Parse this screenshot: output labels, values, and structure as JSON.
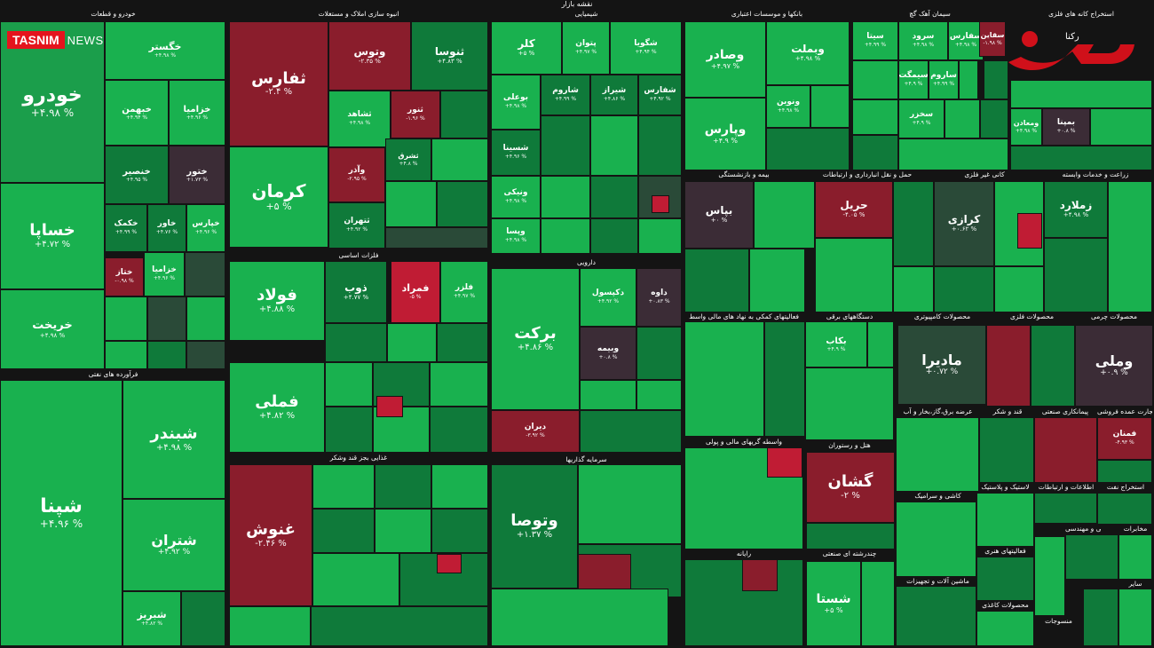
{
  "map_title": "نقشه بازار",
  "watermarks": {
    "agency": "TASNIM",
    "agency_suffix": "NEWS",
    "site": "رکنا"
  },
  "colors": {
    "green": "#1b9e4b",
    "bright_green": "#21c25a",
    "dark_green": "#0f7a3a",
    "red": "#c01c34",
    "dark_red": "#8a1d2c",
    "neutral": "#3b2c36"
  },
  "sectors": [
    {
      "id": "s1",
      "label": "خودرو و قطعات"
    },
    {
      "id": "s2",
      "label": "انبوه سازی املاک و مستغلات"
    },
    {
      "id": "s3",
      "label": "شیمیایی"
    },
    {
      "id": "s4",
      "label": "بانکها و موسسات اعتباری"
    },
    {
      "id": "s5",
      "label": "سیمان آهک گچ"
    },
    {
      "id": "s6",
      "label": "استخراج کانه های فلزی"
    },
    {
      "id": "s7",
      "label": "فرآورده های نفتی"
    },
    {
      "id": "s8",
      "label": "فلزات اساسی"
    },
    {
      "id": "s9",
      "label": "دارویی"
    },
    {
      "id": "s10",
      "label": "بیمه و بازنشستگی"
    },
    {
      "id": "s11",
      "label": "حمل و نقل انبارداری و ارتباطات"
    },
    {
      "id": "s12",
      "label": "کانی غیر فلزی"
    },
    {
      "id": "s13",
      "label": "زراعت و خدمات وابسته"
    },
    {
      "id": "s14",
      "label": "فعالیتهای کمکی به نهاد های مالی واسط"
    },
    {
      "id": "s15",
      "label": "دستگاههای برقی"
    },
    {
      "id": "s16",
      "label": "محصولات کامپیوتری"
    },
    {
      "id": "s17",
      "label": "محصولات فلزی"
    },
    {
      "id": "s18",
      "label": "محصولات چرمی"
    },
    {
      "id": "s19",
      "label": "عرضه برق،گاز،بخار و آب"
    },
    {
      "id": "s20",
      "label": "قند و شکر"
    },
    {
      "id": "s21",
      "label": "پیمانکاری صنعتی"
    },
    {
      "id": "s22",
      "label": "تجارت عمده فروشی"
    },
    {
      "id": "s23",
      "label": "غذایی بجز قند وشکر"
    },
    {
      "id": "s24",
      "label": "سرمایه گذاریها"
    },
    {
      "id": "s25",
      "label": "واسطه گریهای مالی و پولی"
    },
    {
      "id": "s26",
      "label": "هتل و رستوران"
    },
    {
      "id": "s27",
      "label": "کاشی و سرامیک"
    },
    {
      "id": "s28",
      "label": "لاستیک و پلاستیک"
    },
    {
      "id": "s29",
      "label": "اطلاعات و ارتباطات"
    },
    {
      "id": "s30",
      "label": "استخراج نفت"
    },
    {
      "id": "s31",
      "label": "رایانه"
    },
    {
      "id": "s32",
      "label": "چندرشته ای صنعتی"
    },
    {
      "id": "s33",
      "label": "ماشین آلات و تجهیزات"
    },
    {
      "id": "s34",
      "label": "فعالیتهای هنری"
    },
    {
      "id": "s35",
      "label": "محصولات کاغذی"
    },
    {
      "id": "s36",
      "label": "فنی و مهندسی"
    },
    {
      "id": "s37",
      "label": "مخابرات"
    },
    {
      "id": "s38",
      "label": "منسوجات"
    },
    {
      "id": "s39",
      "label": "سایر"
    }
  ],
  "tiles": [
    {
      "sym": "خودرو",
      "chg": "+۴.۹۸ %",
      "c": "g1"
    },
    {
      "sym": "خگستر",
      "chg": "+۴.۹۸ %",
      "c": "g2"
    },
    {
      "sym": "خبهمن",
      "chg": "+۴.۹۴ %",
      "c": "g2"
    },
    {
      "sym": "خساپا",
      "chg": "+۴.۷۲ %",
      "c": "g2"
    },
    {
      "sym": "خزامیا",
      "chg": "+۴.۹۶ %",
      "c": "g2"
    },
    {
      "sym": "خنصیر",
      "chg": "+۴.۹۵ %",
      "c": "g3"
    },
    {
      "sym": "ختور",
      "chg": "+۱.۷۳ %",
      "c": "d1"
    },
    {
      "sym": "خکمک",
      "chg": "+۴.۹۹ %",
      "c": "g3"
    },
    {
      "sym": "خاور",
      "chg": "+۴.۷۶ %",
      "c": "g3"
    },
    {
      "sym": "خپارس",
      "chg": "+۴.۹۶ %",
      "c": "g2"
    },
    {
      "sym": "خریخت",
      "chg": "+۴.۹۸ %",
      "c": "g2"
    },
    {
      "sym": "ختاز",
      "chg": "-۰.۹۸ %",
      "c": "r1"
    },
    {
      "sym": "خزامیا",
      "chg": "+۴.۹۶ %",
      "c": "g2"
    },
    {
      "sym": "خرینگ",
      "chg": "+۰.۸۸ %",
      "c": "d1"
    },
    {
      "sym": "ثفارس",
      "chg": "-۲.۴ %",
      "c": "r1"
    },
    {
      "sym": "وتوس",
      "chg": "-۲.۳۵ %",
      "c": "r1"
    },
    {
      "sym": "ثنوسا",
      "chg": "+۴.۸۳ %",
      "c": "g3"
    },
    {
      "sym": "ثنور",
      "chg": "-۱.۹۶ %",
      "c": "r1"
    },
    {
      "sym": "ثشاهد",
      "chg": "+۴.۹۸ %",
      "c": "g2"
    },
    {
      "sym": "کرمان",
      "chg": "+۵ %",
      "c": "g2"
    },
    {
      "sym": "وآذر",
      "chg": "-۲.۹۵ %",
      "c": "r1"
    },
    {
      "sym": "ثشرق",
      "chg": "+۴.۸ %",
      "c": "g3"
    },
    {
      "sym": "ثتهران",
      "chg": "+۴.۹۲ %",
      "c": "g3"
    },
    {
      "sym": "کلر",
      "chg": "+۵ %",
      "c": "g2"
    },
    {
      "sym": "پتوان",
      "chg": "+۴.۹۷ %",
      "c": "g2"
    },
    {
      "sym": "شگویا",
      "chg": "+۴.۹۴ %",
      "c": "g2"
    },
    {
      "sym": "بوعلی",
      "chg": "+۴.۹۸ %",
      "c": "g2"
    },
    {
      "sym": "شاروم",
      "chg": "+۴.۹۹ %",
      "c": "g3"
    },
    {
      "sym": "شیراز",
      "chg": "+۴.۸۶ %",
      "c": "g3"
    },
    {
      "sym": "شفارس",
      "chg": "+۴.۹۲ %",
      "c": "g3"
    },
    {
      "sym": "شسینا",
      "chg": "+۴.۹۶ %",
      "c": "g3"
    },
    {
      "sym": "ونیکی",
      "chg": "+۴.۹۸ %",
      "c": "g2"
    },
    {
      "sym": "وپسا",
      "chg": "+۴.۹۸ %",
      "c": "g2"
    },
    {
      "sym": "وبملت",
      "chg": "+۴.۹۸ %",
      "c": "g2"
    },
    {
      "sym": "وپارس",
      "chg": "+۴.۹ %",
      "c": "g2"
    },
    {
      "sym": "وصادر",
      "chg": "+۴.۹۷ %",
      "c": "g2"
    },
    {
      "sym": "ونوین",
      "chg": "+۴.۹۸ %",
      "c": "g2"
    },
    {
      "sym": "سیتا",
      "chg": "+۴.۹۹ %",
      "c": "g2"
    },
    {
      "sym": "سرود",
      "chg": "+۴.۹۸ %",
      "c": "g2"
    },
    {
      "sym": "سفارس",
      "chg": "+۴.۹۸ %",
      "c": "g2"
    },
    {
      "sym": "سقاین",
      "chg": "-۱.۹۸ %",
      "c": "r1"
    },
    {
      "sym": "سیمگت",
      "chg": "+۴.۹ %",
      "c": "g2"
    },
    {
      "sym": "ساروم",
      "chg": "+۴.۹۹ %",
      "c": "g2"
    },
    {
      "sym": "سخزر",
      "chg": "+۴.۹ %",
      "c": "g2"
    },
    {
      "sym": "ومعادن",
      "chg": "+۴.۹۸ %",
      "c": "g2"
    },
    {
      "sym": "بمپنا",
      "chg": "+۰.۸ %",
      "c": "d1"
    },
    {
      "sym": "شپنا",
      "chg": "+۴.۹۶ %",
      "c": "g2"
    },
    {
      "sym": "شبندر",
      "chg": "+۴.۹۸ %",
      "c": "g2"
    },
    {
      "sym": "شتران",
      "chg": "+۴.۹۲ %",
      "c": "g2"
    },
    {
      "sym": "شبریز",
      "chg": "+۴.۸۲ %",
      "c": "g2"
    },
    {
      "sym": "فولاد",
      "chg": "+۴.۸۸ %",
      "c": "g2"
    },
    {
      "sym": "ذوب",
      "chg": "+۴.۷۷ %",
      "c": "g3"
    },
    {
      "sym": "فمراد",
      "chg": "-۵ %",
      "c": "r2"
    },
    {
      "sym": "فلزر",
      "chg": "+۴.۹۷ %",
      "c": "g2"
    },
    {
      "sym": "فملی",
      "chg": "+۴.۸۲ %",
      "c": "g2"
    },
    {
      "sym": "برکت",
      "chg": "+۴.۸۶ %",
      "c": "g2"
    },
    {
      "sym": "دکپسول",
      "chg": "+۴.۹۲ %",
      "c": "g2"
    },
    {
      "sym": "داوه",
      "chg": "+۰.۸۳ %",
      "c": "d1"
    },
    {
      "sym": "دیران",
      "chg": "-۳.۹۲ %",
      "c": "r1"
    },
    {
      "sym": "وبیمه",
      "chg": "+۰.۸ %",
      "c": "d1"
    },
    {
      "sym": "بپاس",
      "chg": "+۰ %",
      "c": "d1"
    },
    {
      "sym": "حریل",
      "chg": "-۴.۰۵ %",
      "c": "r1"
    },
    {
      "sym": "کرازی",
      "chg": "+۰.۶۲ %",
      "c": "d2"
    },
    {
      "sym": "زملارد",
      "chg": "+۴.۹۸ %",
      "c": "g3"
    },
    {
      "sym": "ماديرا",
      "chg": "+۰.۷۲ %",
      "c": "d2"
    },
    {
      "sym": "وملی",
      "chg": "+۰.۹ %",
      "c": "d1"
    },
    {
      "sym": "غنوش",
      "chg": "-۲.۴۶ %",
      "c": "r1"
    },
    {
      "sym": "وتوصا",
      "chg": "+۱.۳۷ %",
      "c": "g3"
    },
    {
      "sym": "گشان",
      "chg": "-۲ %",
      "c": "r1"
    },
    {
      "sym": "شستا",
      "chg": "+۵ %",
      "c": "g2"
    },
    {
      "sym": "فمنان",
      "chg": "-۴.۹۳ %",
      "c": "r1"
    },
    {
      "sym": "بکاب",
      "chg": "+۴.۹ %",
      "c": "g2"
    }
  ]
}
